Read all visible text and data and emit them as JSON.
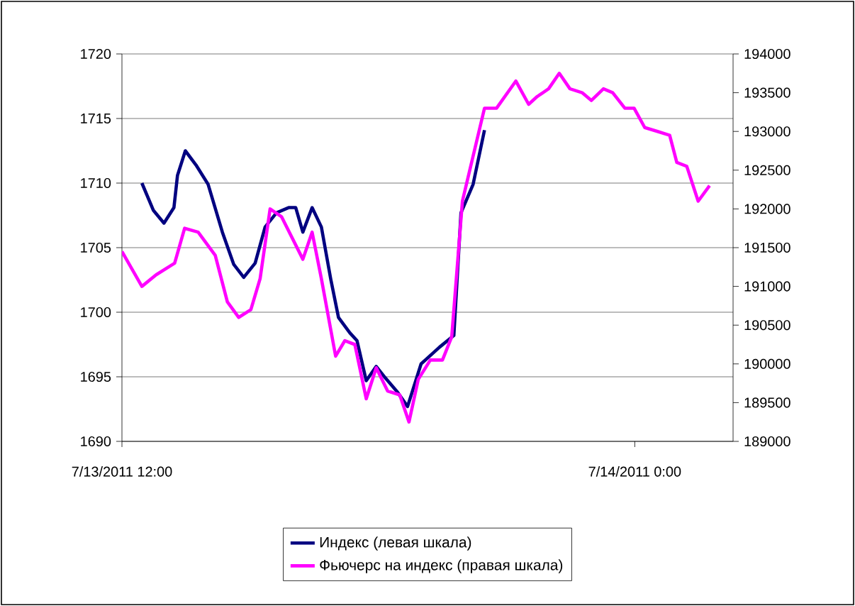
{
  "chart_data": {
    "type": "line",
    "xlim": [
      "2011-07-13T12:00",
      "2011-07-14T02:18"
    ],
    "xticks": [
      {
        "value": "2011-07-13T12:00",
        "label": "7/13/2011 12:00"
      },
      {
        "value": "2011-07-14T00:00",
        "label": "7/14/2011 0:00"
      }
    ],
    "ylim": [
      1690,
      1720
    ],
    "yticks": [
      1690,
      1695,
      1700,
      1705,
      1710,
      1715,
      1720
    ],
    "y2lim": [
      189000,
      194000
    ],
    "y2ticks": [
      189000,
      189500,
      190000,
      190500,
      191000,
      191500,
      192000,
      192500,
      193000,
      193500,
      194000
    ],
    "grid": "y",
    "legend": "bottom",
    "marker": "none",
    "line_style": "solid",
    "series": [
      {
        "name": "Индекс (левая шкала)",
        "color": "#000080",
        "x": [
          "2011-07-13T12:28",
          "2011-07-13T12:44",
          "2011-07-13T12:59",
          "2011-07-13T13:13",
          "2011-07-13T13:18",
          "2011-07-13T13:29",
          "2011-07-13T13:44",
          "2011-07-13T14:01",
          "2011-07-13T14:21",
          "2011-07-13T14:37",
          "2011-07-13T14:51",
          "2011-07-13T15:07",
          "2011-07-13T15:21",
          "2011-07-13T15:37",
          "2011-07-13T15:54",
          "2011-07-13T16:04",
          "2011-07-13T16:14",
          "2011-07-13T16:27",
          "2011-07-13T16:40",
          "2011-07-13T16:53",
          "2011-07-13T17:04",
          "2011-07-13T17:20",
          "2011-07-13T17:30",
          "2011-07-13T17:43",
          "2011-07-13T17:57",
          "2011-07-13T18:10",
          "2011-07-13T18:27",
          "2011-07-13T18:41",
          "2011-07-13T19:00",
          "2011-07-13T19:26",
          "2011-07-13T19:46",
          "2011-07-13T19:56",
          "2011-07-13T20:13",
          "2011-07-13T20:29"
        ],
        "values": [
          1710.0,
          1707.9,
          1706.9,
          1708.1,
          1710.6,
          1712.5,
          1711.4,
          1709.9,
          1706.2,
          1703.7,
          1702.7,
          1703.8,
          1706.6,
          1707.7,
          1708.1,
          1708.1,
          1706.2,
          1708.1,
          1706.6,
          1702.6,
          1699.6,
          1698.4,
          1697.8,
          1694.7,
          1695.8,
          1694.9,
          1693.8,
          1692.7,
          1696.0,
          1697.3,
          1698.2,
          1707.7,
          1709.9,
          1714.1
        ]
      },
      {
        "name": "Фьючерс на индекс (правая шкала)",
        "color": "#ff00ff",
        "axis": "y2",
        "x": [
          "2011-07-13T12:00",
          "2011-07-13T12:28",
          "2011-07-13T12:48",
          "2011-07-13T13:14",
          "2011-07-13T13:28",
          "2011-07-13T13:47",
          "2011-07-13T14:11",
          "2011-07-13T14:28",
          "2011-07-13T14:44",
          "2011-07-13T15:01",
          "2011-07-13T15:14",
          "2011-07-13T15:28",
          "2011-07-13T15:44",
          "2011-07-13T16:14",
          "2011-07-13T16:27",
          "2011-07-13T16:40",
          "2011-07-13T17:00",
          "2011-07-13T17:13",
          "2011-07-13T17:27",
          "2011-07-13T17:43",
          "2011-07-13T17:57",
          "2011-07-13T18:13",
          "2011-07-13T18:30",
          "2011-07-13T18:43",
          "2011-07-13T18:56",
          "2011-07-13T19:13",
          "2011-07-13T19:30",
          "2011-07-13T19:43",
          "2011-07-13T19:58",
          "2011-07-13T20:29",
          "2011-07-13T20:46",
          "2011-07-13T21:13",
          "2011-07-13T21:31",
          "2011-07-13T21:43",
          "2011-07-13T21:59",
          "2011-07-13T22:14",
          "2011-07-13T22:29",
          "2011-07-13T22:46",
          "2011-07-13T22:59",
          "2011-07-13T23:16",
          "2011-07-13T23:29",
          "2011-07-13T23:46",
          "2011-07-13T23:59",
          "2011-07-14T00:14",
          "2011-07-14T00:32",
          "2011-07-14T00:49",
          "2011-07-14T00:59",
          "2011-07-14T01:13",
          "2011-07-14T01:29",
          "2011-07-14T01:45"
        ],
        "values": [
          191450,
          191000,
          191150,
          191300,
          191750,
          191700,
          191400,
          190800,
          190600,
          190700,
          191100,
          192000,
          191900,
          191350,
          191700,
          191100,
          190100,
          190300,
          190250,
          189550,
          189950,
          189650,
          189600,
          189250,
          189800,
          190050,
          190050,
          190350,
          192100,
          193300,
          193300,
          193650,
          193350,
          193450,
          193550,
          193750,
          193550,
          193500,
          193400,
          193550,
          193500,
          193300,
          193300,
          193050,
          193000,
          192950,
          192600,
          192550,
          192100,
          192300
        ]
      }
    ]
  }
}
